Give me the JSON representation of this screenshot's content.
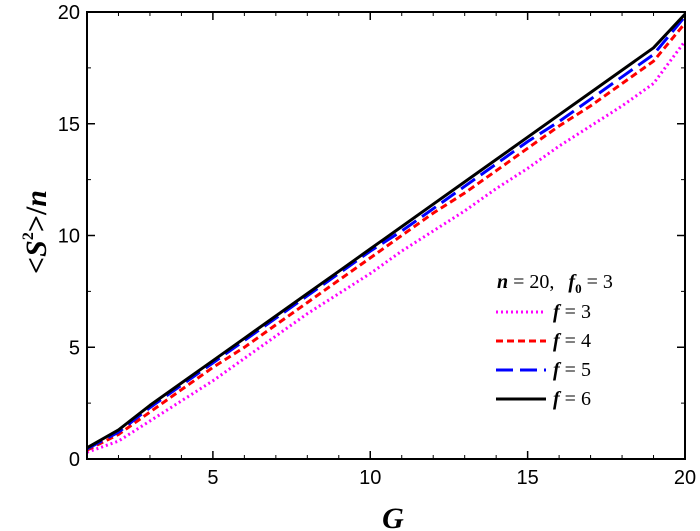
{
  "chart_data": {
    "type": "line",
    "xlabel": "G",
    "ylabel": {
      "lt": "<",
      "S": "S",
      "sup": "2",
      "gt": ">/",
      "n": "n"
    },
    "xlim": [
      1,
      20
    ],
    "ylim": [
      0,
      20
    ],
    "x_ticks": [
      5,
      10,
      15,
      20
    ],
    "y_ticks": [
      0,
      5,
      10,
      15,
      20
    ],
    "grid": false,
    "legend_position": "bottom-right",
    "legend_header": {
      "n_var": "n",
      "n_eq": " = 20,",
      "f_var": "f",
      "f_sub": "0",
      "f_eq": " = 3"
    },
    "x": [
      1,
      2,
      3,
      4,
      5,
      6,
      7,
      8,
      9,
      10,
      11,
      12,
      13,
      14,
      15,
      16,
      17,
      18,
      19,
      20
    ],
    "series": [
      {
        "name_var": "f",
        "name_eq": " = 3",
        "color": "#ff00ff",
        "dash": "dotted",
        "values": [
          0.3,
          0.8,
          1.7,
          2.6,
          3.5,
          4.5,
          5.5,
          6.5,
          7.4,
          8.3,
          9.3,
          10.2,
          11.1,
          12.1,
          13.0,
          14.0,
          14.9,
          15.8,
          16.8,
          18.7
        ]
      },
      {
        "name_var": "f",
        "name_eq": " = 4",
        "color": "#ff0000",
        "dash": "short-dash",
        "values": [
          0.4,
          1.1,
          2.1,
          3.1,
          4.1,
          5.0,
          6.0,
          7.0,
          8.0,
          9.0,
          10.0,
          11.0,
          11.9,
          12.9,
          13.9,
          14.9,
          15.8,
          16.8,
          17.8,
          19.5
        ]
      },
      {
        "name_var": "f",
        "name_eq": " = 5",
        "color": "#0000ff",
        "dash": "long-dash",
        "values": [
          0.45,
          1.2,
          2.3,
          3.3,
          4.3,
          5.3,
          6.3,
          7.3,
          8.3,
          9.3,
          10.2,
          11.2,
          12.2,
          13.2,
          14.2,
          15.1,
          16.1,
          17.1,
          18.1,
          19.8
        ]
      },
      {
        "name_var": "f",
        "name_eq": " = 6",
        "color": "#000000",
        "dash": "solid",
        "values": [
          0.5,
          1.3,
          2.4,
          3.4,
          4.4,
          5.4,
          6.4,
          7.4,
          8.4,
          9.4,
          10.4,
          11.4,
          12.4,
          13.4,
          14.4,
          15.4,
          16.4,
          17.4,
          18.4,
          19.9
        ]
      }
    ]
  }
}
